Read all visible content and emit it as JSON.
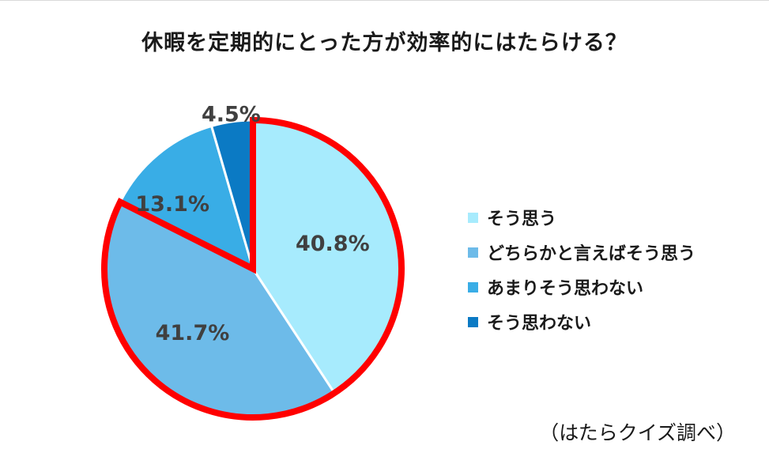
{
  "chart_data": {
    "type": "pie",
    "title": "休暇を定期的にとった方が効率的にはたらける？",
    "categories": [
      "そう思う",
      "どちらかと言えばそう思う",
      "あまりそう思わない",
      "そう思わない"
    ],
    "values": [
      40.8,
      41.7,
      13.1,
      4.5
    ],
    "value_labels": [
      "40.8%",
      "41.7%",
      "13.1%",
      "4.5%"
    ],
    "colors": [
      "#a7ebfd",
      "#6dbbe9",
      "#39ade6",
      "#0b7ac4"
    ],
    "start": "12 o'clock, clockwise",
    "highlighted_slices": [
      "そう思う",
      "どちらかと言えばそう思う"
    ],
    "highlight_color": "#ff0000",
    "legend_position": "right",
    "source_note": "（はたらクイズ調べ）"
  }
}
